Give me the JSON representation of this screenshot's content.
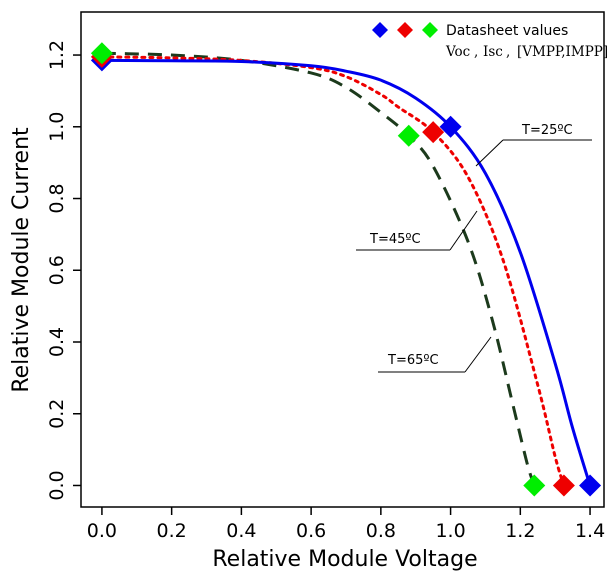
{
  "chart_data": {
    "type": "line",
    "xlabel": "Relative Module Voltage",
    "ylabel": "Relative Module Current",
    "xlim": [
      -0.06,
      1.44
    ],
    "ylim": [
      -0.06,
      1.32
    ],
    "xticks": [
      0.0,
      0.2,
      0.4,
      0.6,
      0.8,
      1.0,
      1.2,
      1.4
    ],
    "xtick_labels": [
      "0.0",
      "0.2",
      "0.4",
      "0.6",
      "0.8",
      "1.0",
      "1.2",
      "1.4"
    ],
    "yticks": [
      0.0,
      0.2,
      0.4,
      0.6,
      0.8,
      1.0,
      1.2
    ],
    "ytick_labels": [
      "0.0",
      "0.2",
      "0.4",
      "0.6",
      "0.8",
      "1.0",
      "1.2"
    ],
    "grid": false,
    "legend": {
      "placement": "top-right",
      "label": "Datasheet values",
      "sub_voc": "Voc",
      "sub_isc": "Isc",
      "sub_mpp": "[VMPP,IMPP]",
      "colors": [
        "#0000ee",
        "#ee0000",
        "#00ee00"
      ]
    },
    "series": [
      {
        "annotation": "T=25ºC",
        "color": "#0000ee",
        "style": "solid",
        "x": [
          0.0,
          0.2,
          0.4,
          0.6,
          0.7,
          0.8,
          0.9,
          1.0,
          1.1,
          1.2,
          1.3,
          1.35,
          1.4
        ],
        "y": [
          1.185,
          1.184,
          1.182,
          1.17,
          1.155,
          1.13,
          1.08,
          1.0,
          0.87,
          0.65,
          0.34,
          0.16,
          0.0
        ],
        "markers": {
          "isc": [
            0.0,
            1.185
          ],
          "mpp": [
            1.0,
            1.0
          ],
          "voc": [
            1.4,
            0.0
          ]
        }
      },
      {
        "annotation": "T=45ºC",
        "color": "#ee0000",
        "style": "dotted",
        "x": [
          0.0,
          0.2,
          0.4,
          0.6,
          0.7,
          0.8,
          0.85,
          0.95,
          1.05,
          1.15,
          1.25,
          1.3,
          1.325
        ],
        "y": [
          1.195,
          1.192,
          1.185,
          1.165,
          1.14,
          1.09,
          1.055,
          0.985,
          0.86,
          0.63,
          0.28,
          0.08,
          0.0
        ],
        "markers": {
          "isc": [
            0.0,
            1.195
          ],
          "mpp": [
            0.95,
            0.985
          ],
          "voc": [
            1.325,
            0.0
          ]
        }
      },
      {
        "annotation": "T=65ºC",
        "color": "#1c3a1c",
        "style": "dashed",
        "x": [
          0.0,
          0.2,
          0.4,
          0.6,
          0.7,
          0.8,
          0.88,
          0.95,
          1.05,
          1.12,
          1.18,
          1.22,
          1.24
        ],
        "y": [
          1.205,
          1.2,
          1.185,
          1.15,
          1.11,
          1.04,
          0.975,
          0.89,
          0.68,
          0.46,
          0.22,
          0.06,
          0.0
        ],
        "markers": {
          "isc": [
            0.0,
            1.205
          ],
          "mpp": [
            0.88,
            0.975
          ],
          "voc": [
            1.24,
            0.0
          ]
        }
      }
    ],
    "marker_colors": [
      "#0000ee",
      "#ee0000",
      "#00ee00"
    ]
  }
}
